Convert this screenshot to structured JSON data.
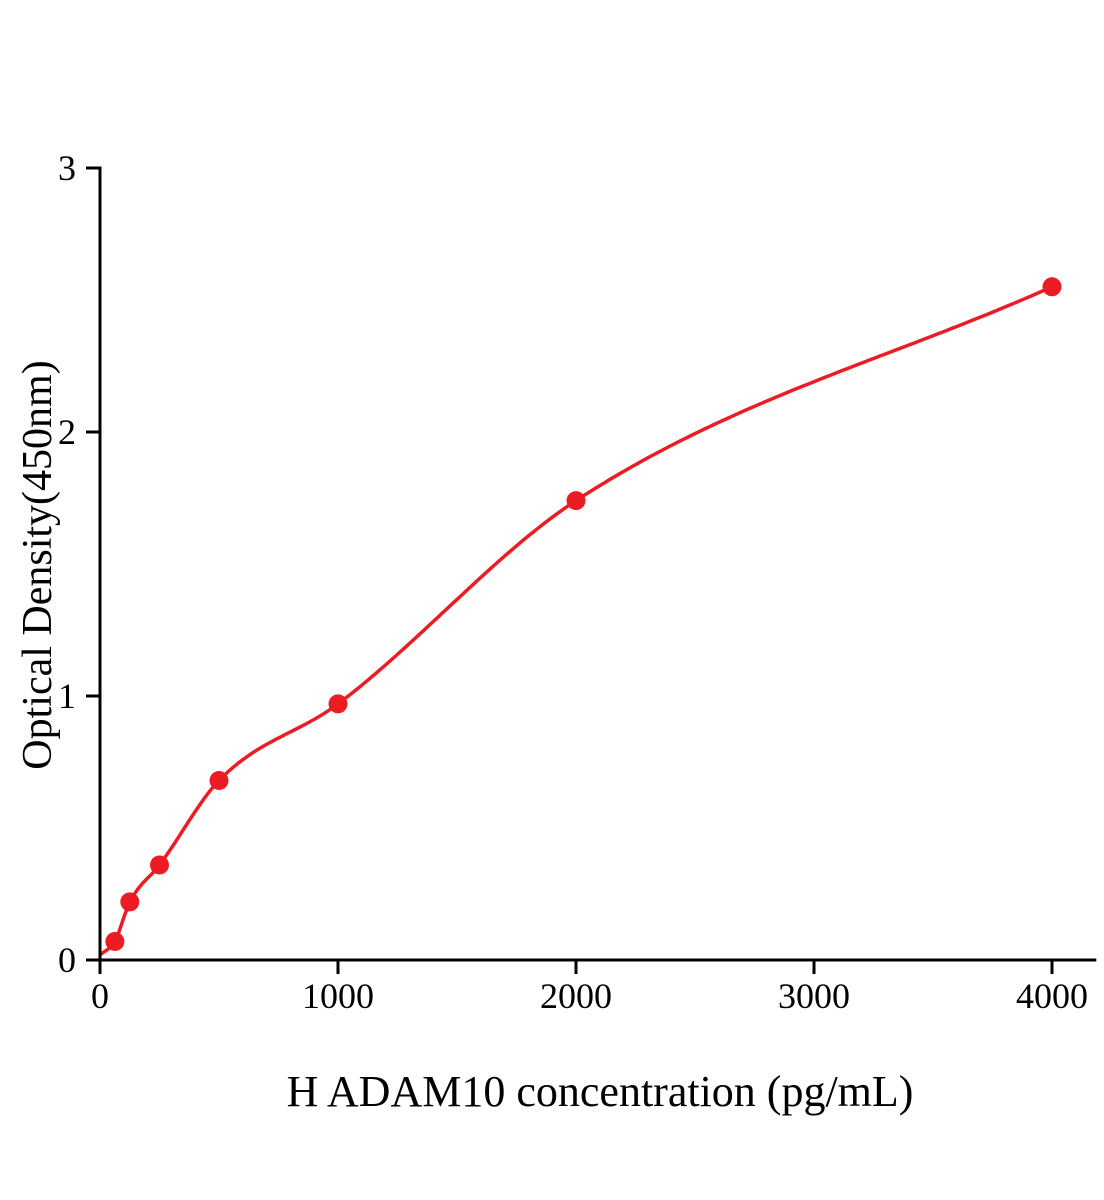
{
  "chart_data": {
    "type": "scatter",
    "title": "",
    "xlabel": "H ADAM10 concentration (pg/mL)",
    "ylabel": "Optical Density(450nm)",
    "x": [
      62.5,
      125,
      250,
      500,
      1000,
      2000,
      4000
    ],
    "y": [
      0.07,
      0.22,
      0.36,
      0.68,
      0.97,
      1.74,
      2.55
    ],
    "curve_start": {
      "x": 0,
      "y": 0.02
    },
    "fit_line": true,
    "xlim": [
      0,
      4180
    ],
    "ylim": [
      0,
      3
    ],
    "xticks": [
      0,
      1000,
      2000,
      3000,
      4000
    ],
    "yticks": [
      0,
      1,
      2,
      3
    ],
    "grid": false,
    "legend": "none",
    "point_color": "#ec1c24",
    "line_color": "#ec1c24",
    "axis_color": "#000000"
  }
}
